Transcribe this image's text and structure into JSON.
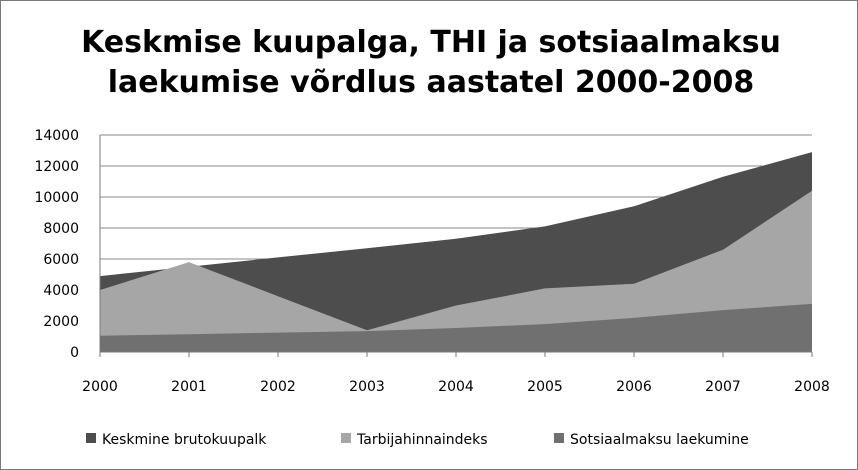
{
  "chart_data": {
    "type": "area",
    "title_lines": [
      "Keskmise kuupalga, THI ja sotsiaalmaksu",
      "laekumise võrdlus  aastatel 2000-2008"
    ],
    "xlabel": "",
    "ylabel": "",
    "ylim": [
      0,
      14000
    ],
    "ytick_step": 2000,
    "yticks": [
      "0",
      "2000",
      "4000",
      "6000",
      "8000",
      "10000",
      "12000",
      "14000"
    ],
    "categories": [
      "2000",
      "2001",
      "2002",
      "2003",
      "2004",
      "2005",
      "2006",
      "2007",
      "2008"
    ],
    "grid": true,
    "legend_position": "bottom",
    "series": [
      {
        "name": "Keskmine brutokuupalk",
        "color": "#4d4d4d",
        "values": [
          4900,
          5500,
          6100,
          6700,
          7300,
          8100,
          9400,
          11300,
          12900
        ]
      },
      {
        "name": "Tarbijahinnaindeks",
        "color": "#a6a6a6",
        "values": [
          4000,
          5800,
          3600,
          1400,
          3000,
          4100,
          4400,
          6600,
          10400
        ]
      },
      {
        "name": "Sotsiaalmaksu laekumine",
        "color": "#707070",
        "values": [
          1050,
          1150,
          1250,
          1350,
          1550,
          1800,
          2200,
          2700,
          3100
        ]
      }
    ]
  }
}
